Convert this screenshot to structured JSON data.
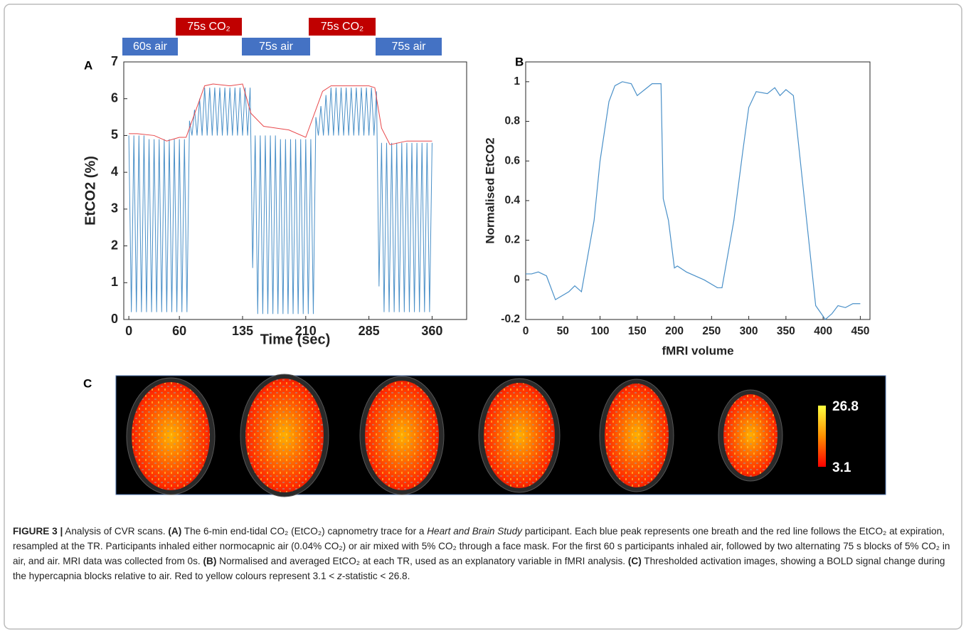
{
  "chart_data": [
    {
      "type": "line",
      "panel": "A",
      "ylabel": "EtCO2 (%)",
      "xlabel": "Time (sec)",
      "xlim": [
        -6,
        401
      ],
      "ylim": [
        0,
        7
      ],
      "xticks": [
        0,
        60,
        135,
        210,
        285,
        360
      ],
      "yticks": [
        0,
        1,
        2,
        3,
        4,
        5,
        6,
        7
      ],
      "blocks": [
        {
          "label": "60s air",
          "color": "#4472c4"
        },
        {
          "label": "75s CO₂",
          "color": "#c00000"
        },
        {
          "label": "75s air",
          "color": "#4472c4"
        },
        {
          "label": "75s CO₂",
          "color": "#c00000"
        },
        {
          "label": "75s air",
          "color": "#4472c4"
        }
      ],
      "series": [
        {
          "color": "#4a90c8",
          "x": [
            0,
            3,
            6,
            9,
            12,
            15,
            18,
            21,
            24,
            27,
            30,
            33,
            36,
            39,
            42,
            45,
            48,
            51,
            54,
            57,
            60,
            63,
            66,
            69,
            72,
            75,
            78,
            81,
            84,
            87,
            90,
            93,
            96,
            99,
            102,
            105,
            108,
            111,
            114,
            117,
            120,
            123,
            126,
            129,
            132,
            135,
            138,
            141,
            144,
            147,
            150,
            153,
            156,
            159,
            162,
            165,
            168,
            171,
            174,
            177,
            180,
            183,
            186,
            189,
            192,
            195,
            198,
            201,
            204,
            207,
            210,
            213,
            216,
            219,
            222,
            225,
            228,
            231,
            234,
            237,
            240,
            243,
            246,
            249,
            252,
            255,
            258,
            261,
            264,
            267,
            270,
            273,
            276,
            279,
            282,
            285,
            288,
            291,
            294,
            297,
            300,
            303,
            306,
            309,
            312,
            315,
            318,
            321,
            324,
            327,
            330,
            333,
            336,
            339,
            342,
            345,
            348,
            351,
            354,
            357,
            360
          ],
          "values": [
            5.0,
            0.2,
            5.0,
            0.2,
            5.0,
            0.2,
            5.0,
            0.2,
            4.9,
            0.2,
            4.9,
            0.2,
            4.9,
            0.2,
            4.9,
            0.2,
            4.9,
            0.2,
            4.9,
            0.2,
            4.9,
            0.2,
            4.9,
            0.2,
            5.4,
            5.0,
            5.7,
            5.0,
            6.0,
            5.0,
            6.3,
            5.0,
            6.3,
            5.0,
            6.3,
            5.0,
            6.3,
            5.0,
            6.3,
            5.0,
            6.3,
            5.0,
            6.3,
            5.0,
            6.3,
            5.0,
            6.3,
            5.0,
            6.3,
            1.4,
            5.0,
            0.15,
            5.0,
            0.15,
            5.0,
            0.15,
            5.0,
            0.15,
            5.0,
            0.15,
            4.9,
            0.15,
            4.9,
            0.15,
            4.9,
            0.15,
            4.9,
            0.15,
            4.9,
            0.15,
            4.9,
            0.15,
            4.9,
            0.15,
            5.5,
            5.0,
            5.8,
            5.0,
            6.1,
            5.0,
            6.3,
            5.0,
            6.3,
            5.0,
            6.3,
            5.0,
            6.3,
            5.0,
            6.3,
            5.0,
            6.3,
            5.0,
            6.3,
            5.0,
            6.3,
            5.0,
            6.3,
            5.0,
            6.2,
            0.9,
            4.8,
            0.2,
            4.8,
            0.2,
            4.8,
            0.2,
            4.8,
            0.2,
            4.8,
            0.2,
            4.8,
            0.2,
            4.8,
            0.2,
            4.8,
            0.2,
            4.8,
            0.2,
            4.8,
            0.2,
            4.8
          ]
        },
        {
          "color": "#e8474a",
          "x": [
            0,
            10,
            30,
            45,
            60,
            68,
            90,
            100,
            120,
            135,
            145,
            160,
            190,
            210,
            230,
            240,
            260,
            285,
            292,
            300,
            310,
            330,
            360
          ],
          "values": [
            5.05,
            5.05,
            5.0,
            4.85,
            4.95,
            4.95,
            6.35,
            6.4,
            6.35,
            6.4,
            5.6,
            5.25,
            5.15,
            4.95,
            6.2,
            6.35,
            6.35,
            6.35,
            6.3,
            5.2,
            4.75,
            4.85,
            4.85
          ]
        }
      ]
    },
    {
      "type": "line",
      "panel": "B",
      "ylabel": "Normalised EtCO2",
      "xlabel": "fMRI volume",
      "xlim": [
        0,
        463
      ],
      "ylim": [
        -0.2,
        1.1
      ],
      "xticks": [
        0,
        50,
        100,
        150,
        200,
        250,
        300,
        350,
        400,
        450
      ],
      "yticks": [
        -0.2,
        0,
        0.2,
        0.4,
        0.6,
        0.8,
        1
      ],
      "series": [
        {
          "color": "#4a90c8",
          "x": [
            0,
            8,
            17,
            28,
            40,
            58,
            66,
            75,
            92,
            100,
            112,
            120,
            130,
            142,
            150,
            160,
            170,
            182,
            185,
            192,
            200,
            204,
            216,
            240,
            258,
            264,
            280,
            292,
            300,
            310,
            325,
            335,
            342,
            350,
            360,
            375,
            390,
            403,
            412,
            420,
            430,
            440,
            450
          ],
          "values": [
            0.03,
            0.03,
            0.04,
            0.02,
            -0.1,
            -0.06,
            -0.03,
            -0.06,
            0.3,
            0.6,
            0.9,
            0.98,
            1.0,
            0.99,
            0.93,
            0.96,
            0.99,
            0.99,
            0.41,
            0.3,
            0.06,
            0.07,
            0.04,
            0.0,
            -0.04,
            -0.04,
            0.3,
            0.65,
            0.87,
            0.95,
            0.94,
            0.97,
            0.93,
            0.96,
            0.93,
            0.4,
            -0.13,
            -0.2,
            -0.17,
            -0.13,
            -0.14,
            -0.12,
            -0.12
          ]
        }
      ]
    }
  ],
  "panel_c": {
    "panel": "C",
    "colorbar_max": "26.8",
    "colorbar_min": "3.1"
  },
  "caption": {
    "runs": [
      "FIGURE 3 |",
      " Analysis of CVR scans. ",
      "(A)",
      " The 6-min end-tidal CO₂ (EtCO₂) capnometry trace for a ",
      "Heart and Brain Study",
      " participant. Each blue peak represents one breath and the red line follows the EtCO₂ at expiration, resampled at the TR. Participants inhaled either normocapnic air (0.04% CO₂) or air mixed with 5% CO₂ through a face mask. For the first 60 s participants inhaled air, followed by two alternating 75 s blocks of 5% CO₂ in air, and air. MRI data was collected from 0s. ",
      "(B)",
      " Normalised and averaged EtCO₂ at each TR, used as an explanatory variable in fMRI analysis. ",
      "(C)",
      " Thresholded activation images, showing a BOLD signal change during the hypercapnia blocks relative to air. Red to yellow colours represent 3.1 < ",
      "z",
      "-statistic < 26.8."
    ]
  }
}
